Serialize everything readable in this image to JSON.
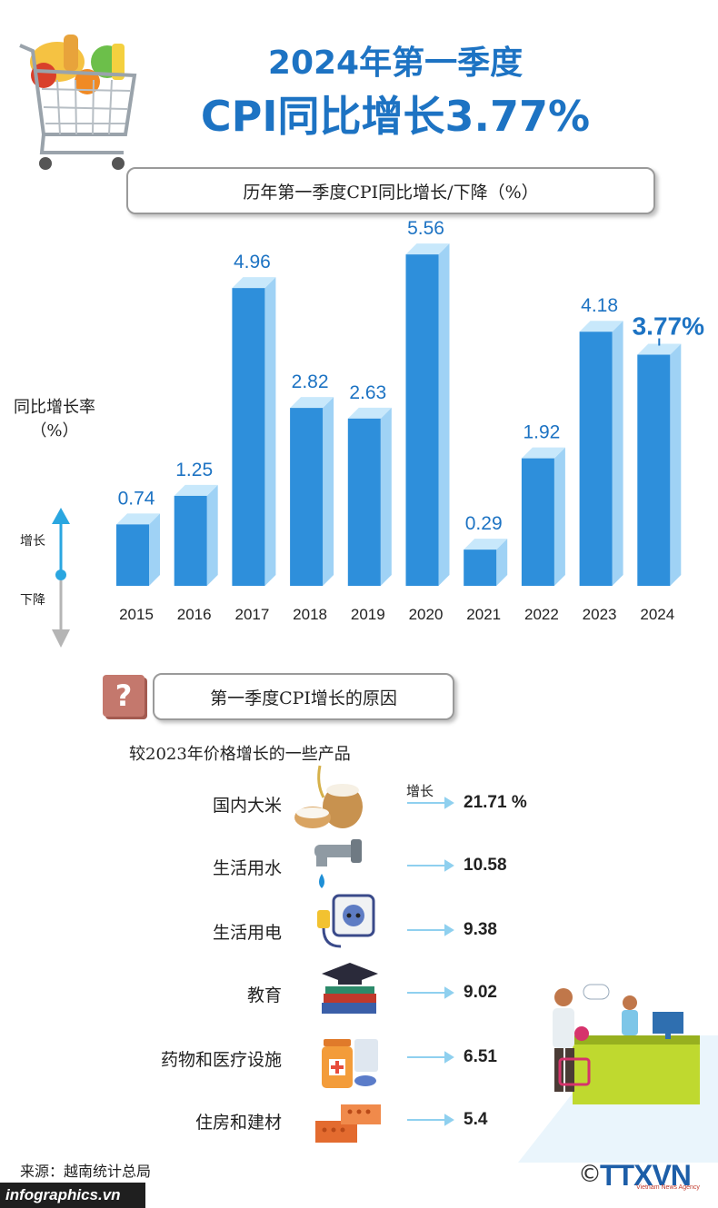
{
  "header": {
    "title_line1": "2024年第一季度",
    "title_line2": "CPI同比增长3.77%"
  },
  "chart_panel": {
    "heading": "历年第一季度CPI同比增长/下降（%）",
    "y_label_line1": "同比增长率",
    "y_label_line2": "（%）",
    "up_label": "增长",
    "down_label": "下降"
  },
  "chart_data": {
    "type": "bar",
    "title": "历年第一季度CPI同比增长/下降（%）",
    "ylabel": "同比增长率（%）",
    "categories": [
      "2015",
      "2016",
      "2017",
      "2018",
      "2019",
      "2020",
      "2021",
      "2022",
      "2023",
      "2024"
    ],
    "values": [
      0.74,
      1.25,
      4.96,
      2.82,
      2.63,
      5.56,
      0.29,
      1.92,
      4.18,
      3.77
    ],
    "value_labels": [
      "0.74",
      "1.25",
      "4.96",
      "2.82",
      "2.63",
      "5.56",
      "0.29",
      "1.92",
      "4.18",
      "3.77%"
    ],
    "highlight_index": 9,
    "ylim": [
      0,
      6
    ],
    "grid": false,
    "colors": {
      "bar_front": "#2e8fdb",
      "bar_side": "#9fd2f5",
      "bar_top": "#c8e8fb",
      "label": "#1d73c3"
    }
  },
  "reasons": {
    "heading": "第一季度CPI增长的原因",
    "subheading": "较2023年价格增长的一些产品",
    "up_label": "增长",
    "items": [
      {
        "name": "国内大米",
        "value": "21.71 %",
        "icon": "rice-icon"
      },
      {
        "name": "生活用水",
        "value": "10.58",
        "icon": "water-tap-icon"
      },
      {
        "name": "生活用电",
        "value": "9.38",
        "icon": "electric-plug-icon"
      },
      {
        "name": "教育",
        "value": "9.02",
        "icon": "graduation-cap-icon"
      },
      {
        "name": "药物和医疗设施",
        "value": "6.51",
        "icon": "medicine-icon"
      },
      {
        "name": "住房和建材",
        "value": "5.4",
        "icon": "bricks-icon"
      }
    ]
  },
  "footer": {
    "source": "来源：越南统计总局",
    "site": "infographics.vn",
    "logo": "TTXVN",
    "logo_sub": "Vietnam News Agency",
    "copyright": "©"
  }
}
